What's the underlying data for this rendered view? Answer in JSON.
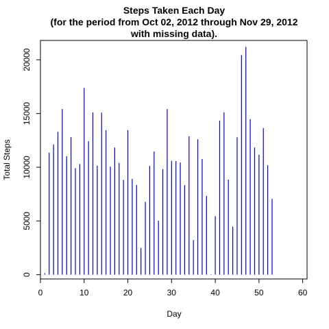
{
  "chart_data": {
    "type": "bar",
    "style": "vertical lines (histogram-type)",
    "title_lines": [
      "Steps Taken Each Day",
      "(for the period from Oct 02, 2012 through Nov 29, 2012",
      "with missing data)."
    ],
    "xlabel": "Day",
    "ylabel": "Total Steps",
    "xlim": [
      0,
      61
    ],
    "ylim": [
      -400,
      21800
    ],
    "x_ticks": [
      0,
      10,
      20,
      30,
      40,
      50,
      60
    ],
    "y_ticks": [
      0,
      5000,
      10000,
      15000,
      20000
    ],
    "bar_color": "#0000cc",
    "grid": false,
    "legend": "none",
    "x": [
      1,
      2,
      3,
      4,
      5,
      6,
      7,
      8,
      9,
      10,
      11,
      12,
      13,
      14,
      15,
      16,
      17,
      18,
      19,
      20,
      21,
      22,
      23,
      24,
      25,
      26,
      27,
      28,
      29,
      30,
      31,
      32,
      33,
      34,
      35,
      36,
      37,
      38,
      39,
      40,
      41,
      42,
      43,
      44,
      45,
      46,
      47,
      48,
      49,
      50,
      51,
      52,
      53
    ],
    "values": [
      126,
      11352,
      12116,
      13294,
      15420,
      11015,
      12811,
      9900,
      10304,
      17382,
      12426,
      15098,
      10139,
      15084,
      13452,
      10056,
      11829,
      10395,
      8821,
      13460,
      8918,
      8355,
      2492,
      6778,
      10119,
      11458,
      5018,
      9819,
      15414,
      10600,
      10571,
      10439,
      8334,
      12883,
      3219,
      12608,
      10765,
      7336,
      41,
      5441,
      14339,
      15110,
      8841,
      4472,
      12787,
      20427,
      21194,
      14478,
      11834,
      11162,
      13646,
      10183,
      7047
    ]
  }
}
